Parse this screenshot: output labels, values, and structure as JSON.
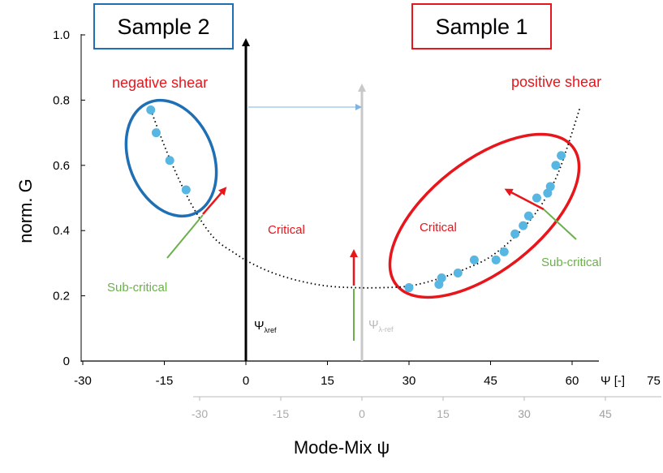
{
  "chart_data": {
    "type": "scatter",
    "ylabel": "norm. G",
    "xlabel": "Mode-Mix ψ",
    "x_axis_end_label": "Ψ [-]",
    "ylim": [
      0,
      1.0
    ],
    "xlim": [
      -30,
      75
    ],
    "y_ticks": [
      "0",
      "0.2",
      "0.4",
      "0.6",
      "0.8",
      "1.0"
    ],
    "x_ticks": [
      "-30",
      "-15",
      "0",
      "15",
      "30",
      "45",
      "60",
      "75"
    ],
    "x2_ticks": [
      "-30",
      "-15",
      "0",
      "15",
      "30",
      "45"
    ],
    "grid": false,
    "series": [
      {
        "color": "#57b6e2",
        "points": [
          {
            "x": -17.5,
            "y": 0.77
          },
          {
            "x": -16.5,
            "y": 0.7
          },
          {
            "x": -14.0,
            "y": 0.615
          },
          {
            "x": -11.0,
            "y": 0.525
          },
          {
            "x": 30.0,
            "y": 0.225
          },
          {
            "x": 35.5,
            "y": 0.235
          },
          {
            "x": 36.0,
            "y": 0.255
          },
          {
            "x": 39.0,
            "y": 0.27
          },
          {
            "x": 42.0,
            "y": 0.31
          },
          {
            "x": 46.0,
            "y": 0.31
          },
          {
            "x": 47.5,
            "y": 0.335
          },
          {
            "x": 49.5,
            "y": 0.39
          },
          {
            "x": 51.0,
            "y": 0.415
          },
          {
            "x": 52.0,
            "y": 0.445
          },
          {
            "x": 53.5,
            "y": 0.5
          },
          {
            "x": 55.5,
            "y": 0.515
          },
          {
            "x": 56.0,
            "y": 0.535
          },
          {
            "x": 57.0,
            "y": 0.6
          },
          {
            "x": 58.0,
            "y": 0.63
          }
        ]
      }
    ],
    "fit_curve": {
      "style": "dotted",
      "color": "#000000",
      "points": [
        [
          -17.5,
          0.77
        ],
        [
          -14,
          0.62
        ],
        [
          -10,
          0.48
        ],
        [
          -6,
          0.38
        ],
        [
          -2,
          0.33
        ],
        [
          1,
          0.3
        ],
        [
          5,
          0.27
        ],
        [
          10,
          0.245
        ],
        [
          15,
          0.23
        ],
        [
          20,
          0.225
        ],
        [
          25,
          0.225
        ],
        [
          30,
          0.23
        ],
        [
          35,
          0.25
        ],
        [
          40,
          0.28
        ],
        [
          45,
          0.32
        ],
        [
          50,
          0.39
        ],
        [
          54,
          0.47
        ],
        [
          57,
          0.56
        ],
        [
          59,
          0.65
        ],
        [
          61.5,
          0.78
        ]
      ]
    },
    "annotations": {
      "sample2": "Sample 2",
      "sample1": "Sample 1",
      "negative_shear": "negative shear",
      "positive_shear": "positive shear",
      "critical_left": "Critical",
      "critical_right": "Critical",
      "subcritical_left": "Sub-critical",
      "subcritical_right": "Sub-critical",
      "psi_ref": "Ψ",
      "psi_ref_sub": "λref",
      "psi_ref2": "Ψ",
      "psi_ref2_sub": "λ-ref"
    },
    "colors": {
      "sample2_box": "#1f6fb5",
      "sample1_box": "#e8151b",
      "blue_ellipse": "#1f6fb5",
      "red_ellipse": "#e8151b",
      "red_text": "#e8151b",
      "green": "#6ab04c",
      "points": "#57b6e2",
      "grey_axis": "#c8c8c8",
      "light_blue_arrow": "#7fb3e0"
    }
  }
}
